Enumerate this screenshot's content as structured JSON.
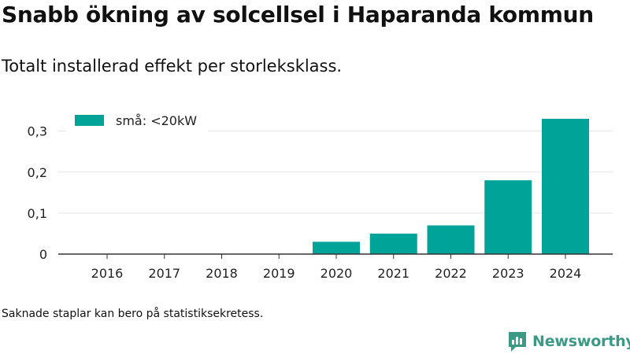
{
  "title": "Snabb ökning av solcellsel i Haparanda kommun",
  "subtitle": "Totalt installerad effekt per storleksklass.",
  "footnote": "Saknade staplar kan bero på statistiksekretess.",
  "brand": {
    "name": "Newsworthy",
    "icon": "newsworthy-chart-logo-icon"
  },
  "colors": {
    "bar": "#00a398",
    "grid": "#e3e3e3",
    "axis": "#333333",
    "brand": "#3a9a86"
  },
  "chart_data": {
    "type": "bar",
    "categories": [
      "2016",
      "2017",
      "2018",
      "2019",
      "2020",
      "2021",
      "2022",
      "2023",
      "2024"
    ],
    "series": [
      {
        "name": "små: <20kW",
        "values": [
          null,
          null,
          null,
          null,
          0.03,
          0.05,
          0.07,
          0.18,
          0.33
        ]
      }
    ],
    "yticks": [
      "0",
      "0,1",
      "0,2",
      "0,3"
    ],
    "ylim": [
      0,
      0.33
    ],
    "grid": true,
    "legend_position": "top-left"
  }
}
